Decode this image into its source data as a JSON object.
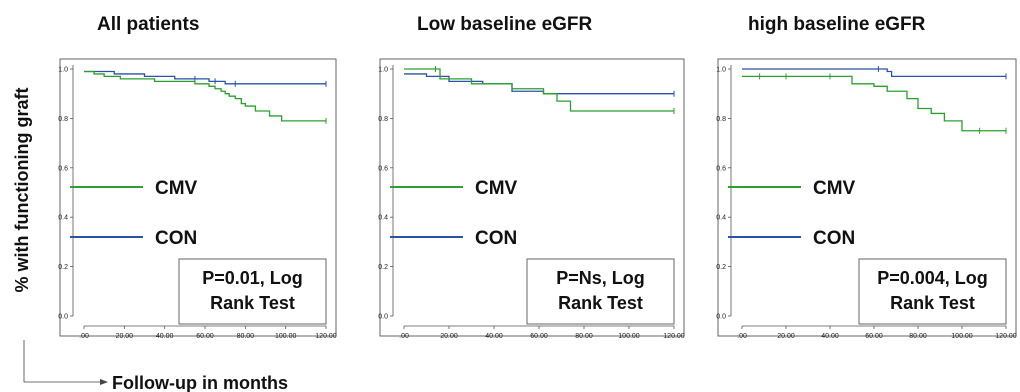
{
  "figure": {
    "ylabel": "% with functioning graft",
    "xlabel": "Follow-up in months"
  },
  "legend_colors": {
    "CMV": "#2ca02c",
    "CON": "#2a52a8"
  },
  "chart_data": [
    {
      "type": "line",
      "title": "All patients",
      "xlabel": "",
      "ylabel": "% with functioning graft",
      "xlim": [
        0,
        120
      ],
      "ylim": [
        0,
        1.0
      ],
      "x_ticks": [
        ".00",
        "20.00",
        "40.00",
        "60.00",
        "80.00",
        "100.00",
        "120.00"
      ],
      "y_ticks": [
        "0.0",
        "0.2",
        "0.4",
        "0.6",
        "0.8",
        "1.0"
      ],
      "grid": false,
      "legend": {
        "placement": "left-middle",
        "entries": [
          "CMV",
          "CON"
        ]
      },
      "annotation": [
        "P=0.01, Log",
        "Rank Test"
      ],
      "series": [
        {
          "name": "CMV",
          "color": "#2ca02c",
          "x": [
            0,
            5,
            10,
            18,
            35,
            55,
            62,
            65,
            68,
            70,
            72,
            75,
            78,
            80,
            85,
            92,
            98,
            120
          ],
          "y": [
            0.99,
            0.98,
            0.97,
            0.96,
            0.95,
            0.94,
            0.93,
            0.92,
            0.91,
            0.9,
            0.89,
            0.88,
            0.86,
            0.85,
            0.83,
            0.81,
            0.79,
            0.79
          ]
        },
        {
          "name": "CON",
          "color": "#2a52a8",
          "x": [
            0,
            15,
            30,
            45,
            55,
            62,
            65,
            70,
            75,
            120
          ],
          "y": [
            0.99,
            0.98,
            0.97,
            0.96,
            0.96,
            0.95,
            0.95,
            0.94,
            0.94,
            0.94
          ]
        }
      ]
    },
    {
      "type": "line",
      "title": "Low baseline eGFR",
      "xlabel": "",
      "ylabel": "",
      "xlim": [
        0,
        120
      ],
      "ylim": [
        0,
        1.0
      ],
      "x_ticks": [
        ".00",
        "20.00",
        "40.00",
        "60.00",
        "80.00",
        "100.00",
        "120.00"
      ],
      "y_ticks": [
        "0.0",
        "0.2",
        "0.4",
        "0.6",
        "0.8",
        "1.0"
      ],
      "grid": false,
      "legend": {
        "placement": "left-middle",
        "entries": [
          "CMV",
          "CON"
        ]
      },
      "annotation": [
        "P=Ns, Log",
        "Rank Test"
      ],
      "series": [
        {
          "name": "CMV",
          "color": "#2ca02c",
          "x": [
            0,
            14,
            16,
            30,
            48,
            62,
            68,
            74,
            120
          ],
          "y": [
            1.0,
            1.0,
            0.96,
            0.94,
            0.92,
            0.9,
            0.87,
            0.83,
            0.83
          ]
        },
        {
          "name": "CON",
          "color": "#2a52a8",
          "x": [
            0,
            10,
            20,
            35,
            48,
            62,
            120
          ],
          "y": [
            0.98,
            0.97,
            0.95,
            0.94,
            0.91,
            0.9,
            0.9
          ]
        }
      ]
    },
    {
      "type": "line",
      "title": "high baseline eGFR",
      "xlabel": "",
      "ylabel": "",
      "xlim": [
        0,
        120
      ],
      "ylim": [
        0,
        1.0
      ],
      "x_ticks": [
        ".00",
        "20.00",
        "40.00",
        "60.00",
        "80.00",
        "100.00",
        "120.00"
      ],
      "y_ticks": [
        "0.0",
        "0.2",
        "0.4",
        "0.6",
        "0.8",
        "1.0"
      ],
      "grid": false,
      "legend": {
        "placement": "left-middle",
        "entries": [
          "CMV",
          "CON"
        ]
      },
      "annotation": [
        "P=0.004, Log",
        "Rank Test"
      ],
      "series": [
        {
          "name": "CMV",
          "color": "#2ca02c",
          "x": [
            0,
            8,
            20,
            40,
            50,
            60,
            66,
            75,
            80,
            86,
            92,
            100,
            108,
            120
          ],
          "y": [
            0.97,
            0.97,
            0.97,
            0.97,
            0.94,
            0.93,
            0.91,
            0.88,
            0.84,
            0.82,
            0.79,
            0.75,
            0.75,
            0.75
          ]
        },
        {
          "name": "CON",
          "color": "#2a52a8",
          "x": [
            0,
            62,
            66,
            68,
            120
          ],
          "y": [
            1.0,
            1.0,
            0.99,
            0.97,
            0.97
          ]
        }
      ]
    }
  ]
}
